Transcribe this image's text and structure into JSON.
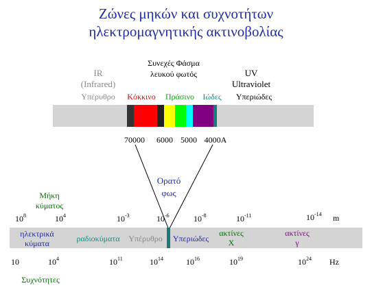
{
  "title": {
    "line1": "Ζώνες μηκών και συχνοτήτων",
    "line2": "ηλεκτρομαγνητικής ακτινοβολίας"
  },
  "top_labels": {
    "ir_line1": "IR",
    "ir_line2": "(Infrared)",
    "continuous_line1": "Συνεχές Φάσμα",
    "continuous_line2": "λευκού φωτός",
    "uv_line1": "UV",
    "uv_line2": "Ultraviolet",
    "infrared_gr": "Υπέρυθρο",
    "red_gr": "Κόκκινο",
    "green_gr": "Πράσινο",
    "violet_gr": "Ιώδες",
    "uv_gr": "Υπεριώδες"
  },
  "top_ticks": [
    "70000",
    "6000",
    "5000",
    "4000A"
  ],
  "visible_light": {
    "line1": "Ορατό",
    "line2": "φως"
  },
  "long_wavelength": {
    "line1": "Μήκη",
    "line2": "κύματος"
  },
  "wavelength_ticks": [
    {
      "base": "10",
      "exp": "8"
    },
    {
      "base": "10",
      "exp": "4"
    },
    {
      "base": "10",
      "exp": "-3"
    },
    {
      "base": "10",
      "exp": "-6"
    },
    {
      "base": "10",
      "exp": "-8"
    },
    {
      "base": "10",
      "exp": "-11"
    },
    {
      "base": "10",
      "exp": "-14"
    }
  ],
  "wavelength_unit": "m",
  "bottom_bands": {
    "electric_line1": "ηλεκτρικά",
    "electric_line2": "κύματα",
    "radio": "ραδιοκύματα",
    "infrared": "Υπέρυθρο",
    "ultraviolet": "Υπεριώδες",
    "xray_line1": "ακτίνες",
    "xray_line2": "X",
    "gamma_line1": "ακτίνες",
    "gamma_line2": "γ"
  },
  "frequency_ticks": [
    {
      "base": "10",
      "exp": ""
    },
    {
      "base": "10",
      "exp": "4"
    },
    {
      "base": "10",
      "exp": "11"
    },
    {
      "base": "10",
      "exp": "14"
    },
    {
      "base": "10",
      "exp": "16"
    },
    {
      "base": "10",
      "exp": "19"
    },
    {
      "base": "10",
      "exp": "24"
    }
  ],
  "frequency_unit": "Hz",
  "frequencies_label": "Συχνότητες",
  "colors": {
    "title": "#1f2d9e",
    "bar": "#d4d4d4",
    "spectrum": [
      "#333333",
      "#ff0000",
      "#222222",
      "#ffff00",
      "#00ff00",
      "#00ffff",
      "#800080",
      "#1a7a7a"
    ],
    "visible_marker": "#1a7a7a"
  }
}
